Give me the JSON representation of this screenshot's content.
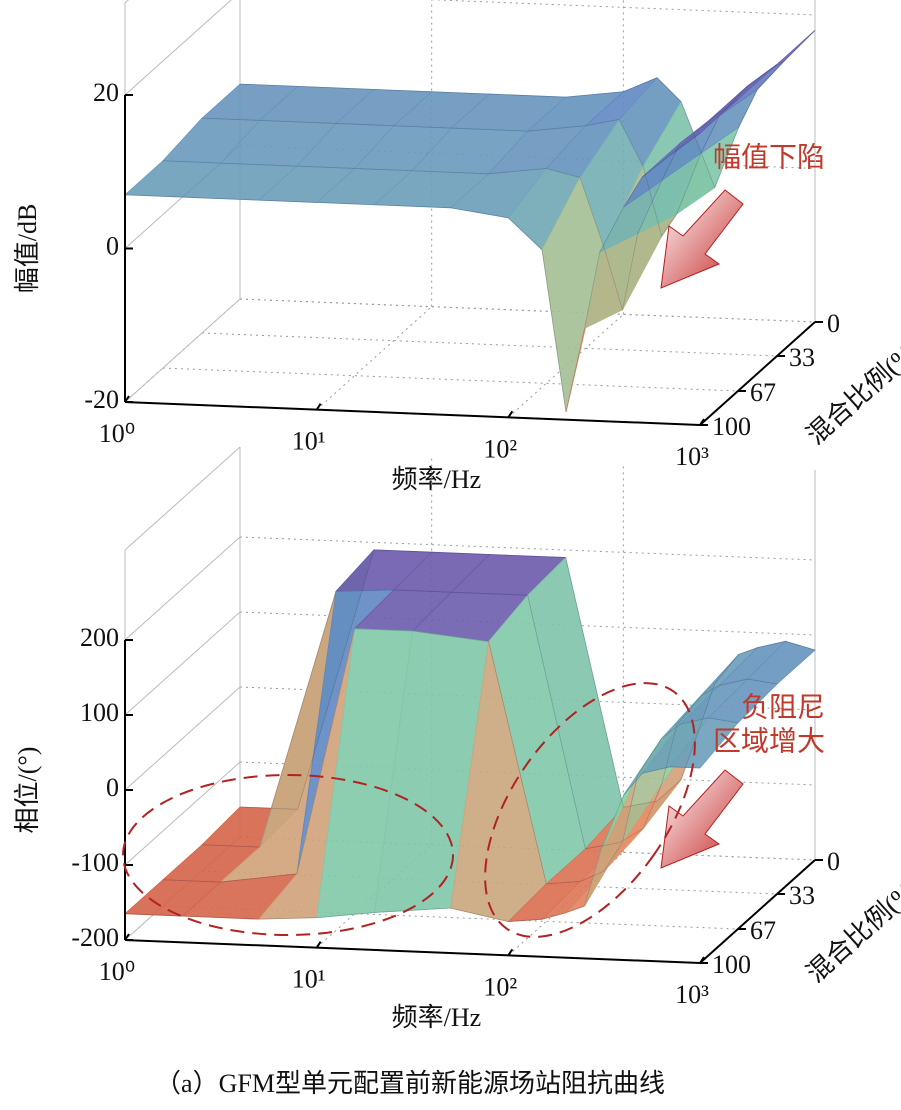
{
  "caption": "（a）GFM型单元配置前新能源场站阻抗曲线",
  "chart_data": [
    {
      "type": "surface3d",
      "xlabel": "频率/Hz",
      "ylabel": "幅值/dB",
      "zlabel": "混合比例(%)",
      "xscale": "log",
      "xlim": [
        1,
        1000
      ],
      "xticks": [
        {
          "value": 1,
          "label": "10⁰"
        },
        {
          "value": 10,
          "label": "10¹"
        },
        {
          "value": 100,
          "label": "10²"
        },
        {
          "value": 1000,
          "label": "10³"
        }
      ],
      "ylim": [
        -20,
        20
      ],
      "yticks": [
        -20,
        0,
        20
      ],
      "zlim": [
        0,
        100
      ],
      "zticks": [
        0,
        33,
        67,
        100
      ],
      "grid": true,
      "colormap": [
        "#c94a35",
        "#e9916a",
        "#86d3a4",
        "#5f86c2",
        "#6e52a8"
      ],
      "x": [
        1,
        2,
        5,
        10,
        20,
        50,
        100,
        150,
        200,
        250,
        300,
        400,
        500,
        700,
        1000
      ],
      "series": [
        {
          "z": 0,
          "values": [
            8,
            8,
            8,
            8,
            8,
            8,
            9,
            11,
            8,
            2,
            -3,
            5,
            10,
            14,
            18
          ]
        },
        {
          "z": 33,
          "values": [
            8,
            8,
            8,
            8,
            8,
            8,
            9,
            10,
            4,
            -5,
            -2,
            6,
            11,
            15,
            18
          ]
        },
        {
          "z": 67,
          "values": [
            7,
            7,
            7,
            7,
            7,
            7,
            8,
            7,
            -2,
            -10,
            0,
            7,
            12,
            15,
            18
          ]
        },
        {
          "z": 100,
          "values": [
            7,
            7,
            7,
            7,
            7,
            7,
            6,
            2,
            -19,
            -8,
            2,
            8,
            12,
            15,
            18
          ]
        }
      ],
      "annotations": [
        "幅值下陷"
      ]
    },
    {
      "type": "surface3d",
      "xlabel": "频率/Hz",
      "ylabel": "相位/(°)",
      "zlabel": "混合比例(%)",
      "xscale": "log",
      "xlim": [
        1,
        1000
      ],
      "xticks": [
        {
          "value": 1,
          "label": "10⁰"
        },
        {
          "value": 10,
          "label": "10¹"
        },
        {
          "value": 100,
          "label": "10²"
        },
        {
          "value": 1000,
          "label": "10³"
        }
      ],
      "ylim": [
        -200,
        200
      ],
      "yticks": [
        -200,
        -100,
        0,
        100,
        200
      ],
      "zlim": [
        0,
        100
      ],
      "zticks": [
        0,
        33,
        67,
        100
      ],
      "grid": true,
      "colormap": [
        "#c94a35",
        "#e9916a",
        "#86d3a4",
        "#5f86c2",
        "#6e52a8"
      ],
      "x": [
        1,
        2,
        5,
        10,
        20,
        50,
        100,
        150,
        200,
        250,
        300,
        400,
        500,
        700,
        1000
      ],
      "series": [
        {
          "z": 0,
          "values": [
            -160,
            -160,
            190,
            190,
            190,
            190,
            -140,
            -130,
            -100,
            -30,
            30,
            70,
            80,
            90,
            80
          ]
        },
        {
          "z": 33,
          "values": [
            -165,
            -165,
            180,
            185,
            185,
            185,
            -150,
            -140,
            -120,
            -60,
            20,
            60,
            75,
            85,
            80
          ]
        },
        {
          "z": 67,
          "values": [
            -165,
            -165,
            -150,
            180,
            180,
            170,
            -150,
            -145,
            -130,
            -90,
            0,
            50,
            70,
            80,
            75
          ]
        },
        {
          "z": 100,
          "values": [
            -165,
            -165,
            -165,
            -160,
            -150,
            -140,
            -155,
            -150,
            -140,
            -130,
            -60,
            20,
            50,
            60,
            60
          ]
        }
      ],
      "annotations": [
        "负阻尼",
        "区域增大"
      ]
    }
  ]
}
